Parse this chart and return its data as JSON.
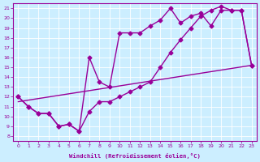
{
  "xlabel": "Windchill (Refroidissement éolien,°C)",
  "bg_color": "#cceeff",
  "line_color": "#990099",
  "grid_color": "#ffffff",
  "xlim": [
    -0.5,
    23.5
  ],
  "ylim": [
    7.5,
    21.5
  ],
  "xticks": [
    0,
    1,
    2,
    3,
    4,
    5,
    6,
    7,
    8,
    9,
    10,
    11,
    12,
    13,
    14,
    15,
    16,
    17,
    18,
    19,
    20,
    21,
    22,
    23
  ],
  "yticks": [
    8,
    9,
    10,
    11,
    12,
    13,
    14,
    15,
    16,
    17,
    18,
    19,
    20,
    21
  ],
  "line1_x": [
    0,
    1,
    2,
    3,
    4,
    5,
    6,
    7,
    8,
    9,
    10,
    11,
    12,
    13,
    14,
    15,
    16,
    17,
    18,
    19,
    20,
    21,
    22,
    23
  ],
  "line1_y": [
    12,
    11,
    10.3,
    10.3,
    9,
    9.2,
    8.5,
    16,
    13.5,
    13,
    18.5,
    18.5,
    18.5,
    19.2,
    19.8,
    21,
    19.5,
    20.2,
    20.5,
    19.2,
    20.8,
    20.8,
    20.8,
    15.2
  ],
  "line2_x": [
    0,
    1,
    2,
    3,
    4,
    5,
    6,
    7,
    8,
    9,
    10,
    11,
    12,
    13,
    14,
    15,
    16,
    17,
    18,
    19,
    20,
    21,
    22,
    23
  ],
  "line2_y": [
    12,
    11,
    10.3,
    10.3,
    9,
    9.2,
    8.5,
    10.5,
    11.5,
    11.5,
    12,
    12.5,
    13,
    13.5,
    15,
    16.5,
    17.8,
    19.0,
    20.2,
    20.8,
    21.2,
    20.8,
    20.8,
    15.2
  ],
  "line3_x": [
    0,
    23
  ],
  "line3_y": [
    11.5,
    15.2
  ],
  "marker": "D",
  "markersize": 2.5,
  "linewidth": 1.0
}
